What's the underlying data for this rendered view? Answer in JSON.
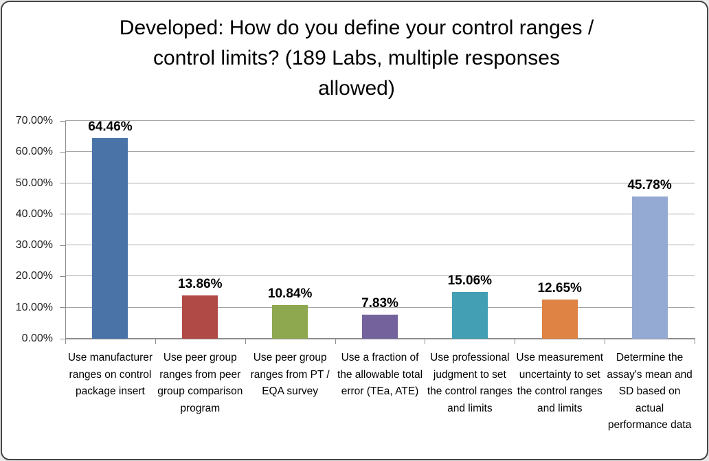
{
  "title": "Developed: How do you define your control ranges / control limits? (189 Labs, multiple responses allowed)",
  "chart_data": {
    "type": "bar",
    "title": "Developed: How do you define your control ranges / control limits? (189 Labs, multiple responses allowed)",
    "categories": [
      "Use manufacturer ranges on control package insert",
      "Use peer group ranges from peer group comparison program",
      "Use peer group ranges from PT / EQA survey",
      "Use a fraction of the allowable total error (TEa, ATE)",
      "Use professional judgment to set the control ranges and limits",
      "Use measurement uncertainty to set the control ranges and limits",
      "Determine the assay's mean and SD based on actual performance data"
    ],
    "values": [
      64.46,
      13.86,
      10.84,
      7.83,
      15.06,
      12.65,
      45.78
    ],
    "data_labels": [
      "64.46%",
      "13.86%",
      "10.84%",
      "7.83%",
      "15.06%",
      "12.65%",
      "45.78%"
    ],
    "bar_colors": [
      "#4A74A8",
      "#B04A47",
      "#8DA84F",
      "#73629B",
      "#429FB4",
      "#DF8344",
      "#95AAD3"
    ],
    "y_ticks": [
      "0.00%",
      "10.00%",
      "20.00%",
      "30.00%",
      "40.00%",
      "50.00%",
      "60.00%",
      "70.00%"
    ],
    "ylim": [
      0,
      70
    ],
    "xlabel": "",
    "ylabel": "",
    "grid": true,
    "legend": "none",
    "sample_note": "189 Labs, multiple responses allowed"
  },
  "style": {
    "grid_color": "#a5a5a5",
    "axis_color": "#8e8e8e",
    "text_color": "#000000",
    "background": "#ffffff",
    "frame_border": "#454545"
  }
}
